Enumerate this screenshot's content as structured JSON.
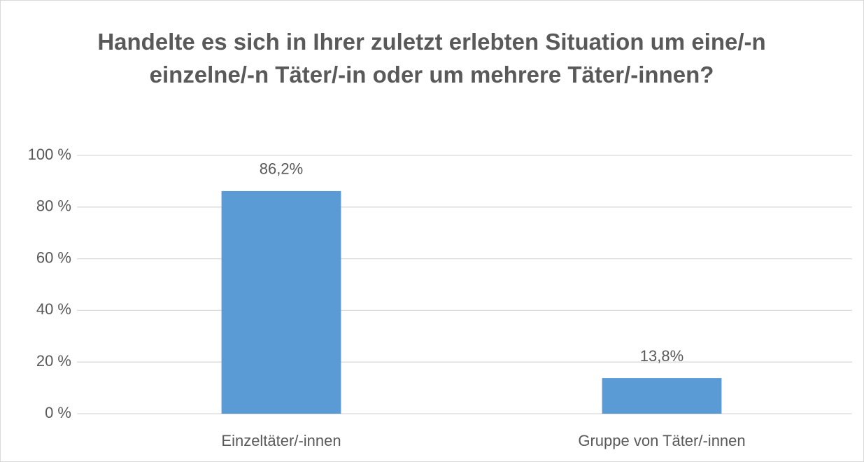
{
  "chart_data": {
    "type": "bar",
    "title": "Handelte es sich in Ihrer zuletzt erlebten Situation um eine/-n einzelne/-n Täter/-in oder um mehrere Täter/-innen?",
    "categories": [
      "Einzeltäter/-innen",
      "Gruppe von Täter/-innen"
    ],
    "values": [
      86.2,
      13.8
    ],
    "value_labels": [
      "86,2%",
      "13,8%"
    ],
    "color": "#5b9bd5",
    "ylim": [
      0,
      100
    ],
    "yticks": [
      {
        "value": 0,
        "label": "0 %"
      },
      {
        "value": 20,
        "label": "20 %"
      },
      {
        "value": 40,
        "label": "40 %"
      },
      {
        "value": 60,
        "label": "60 %"
      },
      {
        "value": 80,
        "label": "80 %"
      },
      {
        "value": 100,
        "label": "100 %"
      }
    ],
    "grid": true
  }
}
